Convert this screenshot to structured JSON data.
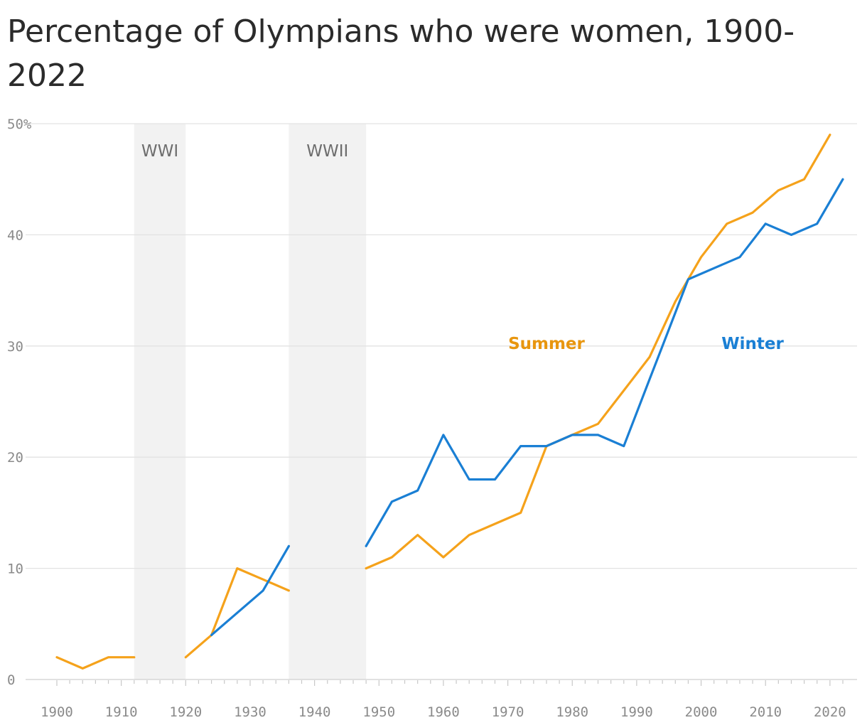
{
  "chart_data": {
    "type": "line",
    "title": "Percentage of Olympians who were women, 1900-2022",
    "xlabel": "",
    "ylabel": "",
    "xlim": [
      1900,
      2022
    ],
    "ylim": [
      0,
      50
    ],
    "y_unit_top_label": "50%",
    "x_ticks": [
      1900,
      1910,
      1920,
      1930,
      1940,
      1950,
      1960,
      1970,
      1980,
      1990,
      2000,
      2010,
      2020
    ],
    "y_ticks": [
      0,
      10,
      20,
      30,
      40
    ],
    "grid": true,
    "shaded_periods": [
      {
        "label": "WWI",
        "start": 1912,
        "end": 1920
      },
      {
        "label": "WWII",
        "start": 1936,
        "end": 1948
      }
    ],
    "series": [
      {
        "name": "Summer",
        "color": "#f5a21b",
        "label_color": "#e8960f",
        "label_at": [
          1976,
          30
        ],
        "segments": [
          [
            [
              1900,
              2
            ],
            [
              1904,
              1
            ],
            [
              1908,
              2
            ],
            [
              1912,
              2
            ]
          ],
          [
            [
              1920,
              2
            ],
            [
              1924,
              4
            ],
            [
              1928,
              10
            ],
            [
              1932,
              9
            ],
            [
              1936,
              8
            ]
          ],
          [
            [
              1948,
              10
            ],
            [
              1952,
              11
            ],
            [
              1956,
              13
            ],
            [
              1960,
              11
            ],
            [
              1964,
              13
            ],
            [
              1968,
              14
            ],
            [
              1972,
              15
            ],
            [
              1976,
              21
            ],
            [
              1980,
              22
            ],
            [
              1984,
              23
            ],
            [
              1988,
              26
            ],
            [
              1992,
              29
            ],
            [
              1996,
              34
            ],
            [
              2000,
              38
            ],
            [
              2004,
              41
            ],
            [
              2008,
              42
            ],
            [
              2012,
              44
            ],
            [
              2016,
              45
            ],
            [
              2020,
              49
            ]
          ]
        ]
      },
      {
        "name": "Winter",
        "color": "#1a7fd4",
        "label_color": "#1a7fd4",
        "label_at": [
          2008,
          30
        ],
        "segments": [
          [
            [
              1924,
              4
            ],
            [
              1928,
              6
            ],
            [
              1932,
              8
            ],
            [
              1936,
              12
            ]
          ],
          [
            [
              1948,
              12
            ],
            [
              1952,
              16
            ],
            [
              1956,
              17
            ],
            [
              1960,
              22
            ],
            [
              1964,
              18
            ],
            [
              1968,
              18
            ],
            [
              1972,
              21
            ],
            [
              1976,
              21
            ],
            [
              1980,
              22
            ],
            [
              1984,
              22
            ],
            [
              1988,
              21
            ],
            [
              1992,
              27
            ],
            [
              1994,
              30
            ],
            [
              1998,
              36
            ],
            [
              2002,
              37
            ],
            [
              2006,
              38
            ],
            [
              2010,
              41
            ],
            [
              2014,
              40
            ],
            [
              2018,
              41
            ],
            [
              2022,
              45
            ]
          ]
        ]
      }
    ]
  }
}
